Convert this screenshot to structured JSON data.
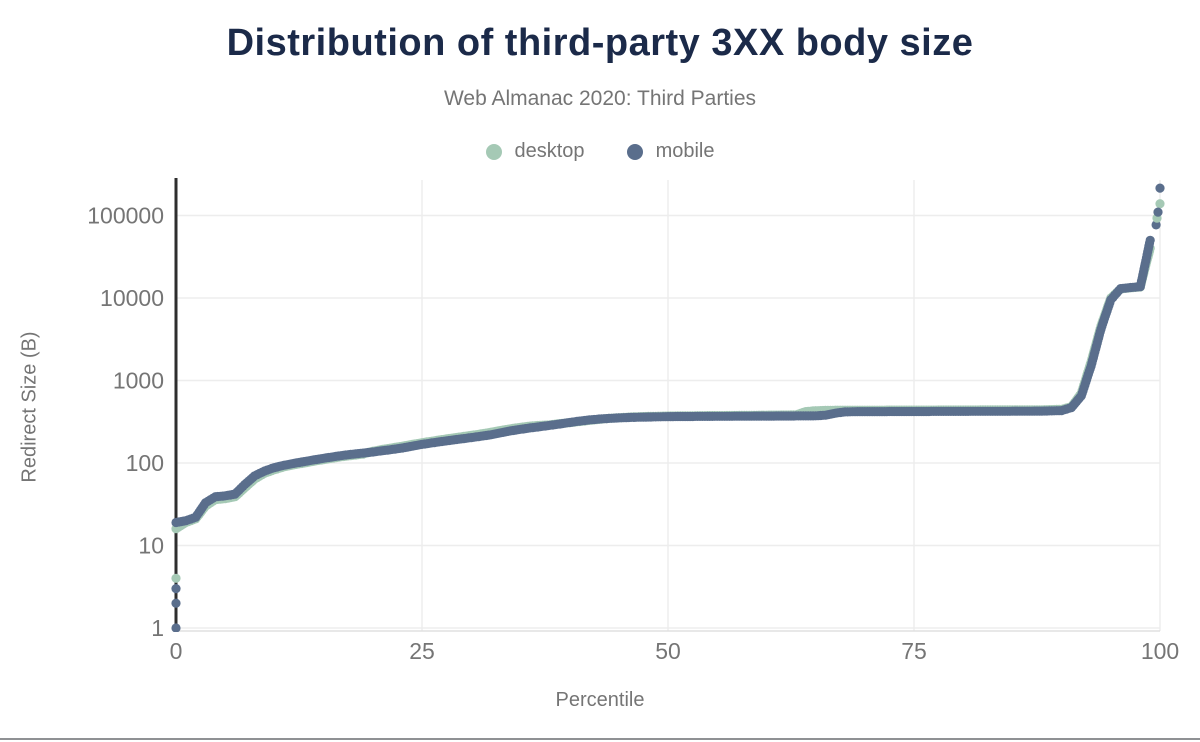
{
  "title": "Distribution of third-party 3XX body size",
  "subtitle": "Web Almanac 2020: Third Parties",
  "legend": [
    {
      "label": "desktop",
      "color": "#a5c9b5"
    },
    {
      "label": "mobile",
      "color": "#5a6e8c"
    }
  ],
  "colors": {
    "title": "#1b2a49",
    "text": "#757575",
    "grid": "#ededed",
    "axis": "#2e2e2e",
    "plot_border": "#e0e0e0",
    "divider": "#8f9194"
  },
  "chart_data": {
    "type": "scatter",
    "title": "Distribution of third-party 3XX body size",
    "subtitle": "Web Almanac 2020: Third Parties",
    "xlabel": "Percentile",
    "ylabel": "Redirect Size (B)",
    "x_ticks": [
      0,
      25,
      50,
      75,
      100
    ],
    "y_ticks": [
      1,
      10,
      100,
      1000,
      10000,
      100000
    ],
    "y_scale": "log",
    "xlim": [
      0,
      100
    ],
    "ylim": [
      1,
      250000
    ],
    "grid": true,
    "legend_position": "top",
    "x": "percentiles 0-100, step 1",
    "series": [
      {
        "name": "desktop",
        "color": "#a5c9b5",
        "values": [
          16,
          19,
          21,
          30,
          36,
          37,
          39,
          50,
          64,
          75,
          83,
          90,
          95,
          100,
          105,
          110,
          115,
          120,
          124,
          128,
          139,
          146,
          153,
          160,
          168,
          176,
          184,
          192,
          200,
          208,
          216,
          225,
          236,
          248,
          260,
          271,
          280,
          286,
          290,
          300,
          308,
          318,
          328,
          338,
          348,
          354,
          360,
          364,
          367,
          369,
          371,
          372,
          373,
          374,
          375,
          375,
          376,
          377,
          378,
          379,
          380,
          381,
          382,
          383,
          420,
          430,
          434,
          436,
          436,
          437,
          437,
          437,
          437,
          438,
          438,
          438,
          438,
          438,
          439,
          439,
          439,
          439,
          440,
          440,
          440,
          440,
          441,
          441,
          442,
          444,
          448,
          480,
          700,
          1700,
          4600,
          10000,
          12900,
          13300,
          13600,
          40000,
          139000
        ]
      },
      {
        "name": "mobile",
        "color": "#5a6e8c",
        "values": [
          19,
          20,
          22,
          33,
          39,
          40,
          42,
          55,
          70,
          80,
          88,
          94,
          99,
          104,
          109,
          114,
          119,
          124,
          128,
          132,
          136,
          141,
          146,
          152,
          160,
          168,
          175,
          182,
          189,
          196,
          203,
          211,
          220,
          232,
          245,
          256,
          266,
          276,
          286,
          297,
          310,
          322,
          333,
          341,
          347,
          352,
          356,
          359,
          361,
          363,
          365,
          366,
          366,
          367,
          367,
          368,
          368,
          369,
          369,
          370,
          370,
          371,
          371,
          372,
          372,
          373,
          380,
          402,
          416,
          419,
          420,
          420,
          420,
          421,
          421,
          421,
          421,
          422,
          422,
          422,
          422,
          423,
          423,
          423,
          423,
          424,
          424,
          425,
          426,
          428,
          432,
          470,
          650,
          1500,
          4200,
          9500,
          13000,
          13400,
          13700,
          50000,
          215000
        ]
      }
    ],
    "extra_points": [
      {
        "series": "desktop",
        "x": 0,
        "value": 4
      },
      {
        "series": "mobile",
        "x": 0,
        "value": 3
      },
      {
        "series": "mobile",
        "x": 0,
        "value": 2
      },
      {
        "series": "mobile",
        "x": 0,
        "value": 1
      },
      {
        "series": "mobile",
        "x": 99.6,
        "value": 77000
      },
      {
        "series": "desktop",
        "x": 99.7,
        "value": 93000
      },
      {
        "series": "mobile",
        "x": 99.8,
        "value": 110000
      }
    ]
  }
}
